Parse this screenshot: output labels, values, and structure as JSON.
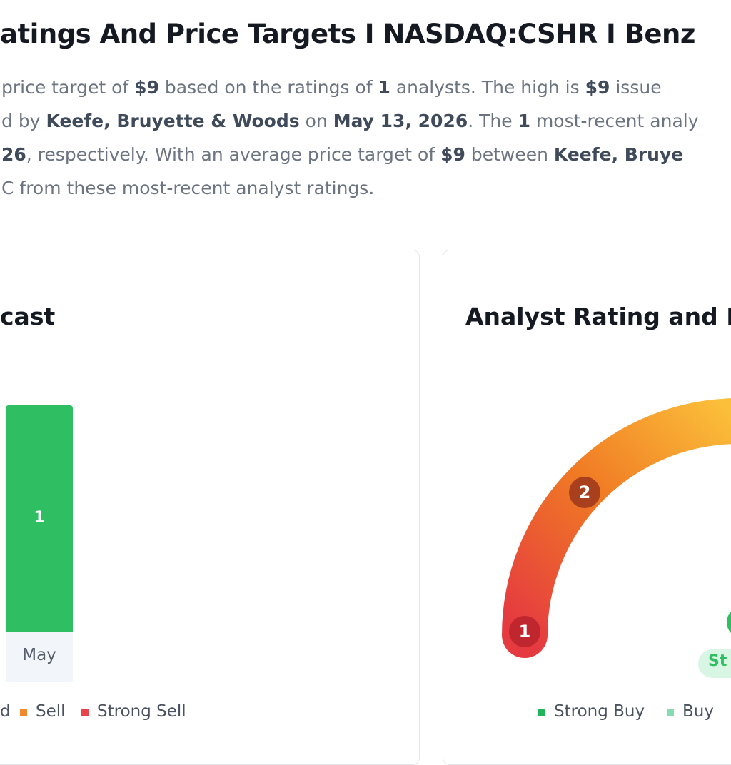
{
  "header": {
    "title": "atings And Price Targets I NASDAQ:CSHR I Benz"
  },
  "summary": {
    "lines": [
      [
        {
          "text": "price target of ",
          "bold": false
        },
        {
          "text": "$9",
          "bold": true
        },
        {
          "text": " based on the ratings of ",
          "bold": false
        },
        {
          "text": "1",
          "bold": true
        },
        {
          "text": " analysts. The high is ",
          "bold": false
        },
        {
          "text": "$9",
          "bold": true
        },
        {
          "text": " issue",
          "bold": false
        }
      ],
      [
        {
          "text": "d by ",
          "bold": false
        },
        {
          "text": "Keefe, Bruyette & Woods",
          "bold": true
        },
        {
          "text": " on ",
          "bold": false
        },
        {
          "text": "May 13, 2026",
          "bold": true
        },
        {
          "text": ". The ",
          "bold": false
        },
        {
          "text": "1",
          "bold": true
        },
        {
          "text": " most-recent analy",
          "bold": false
        }
      ],
      [
        {
          "text": "26",
          "bold": true
        },
        {
          "text": ", respectively. With an average price target of ",
          "bold": false
        },
        {
          "text": "$9",
          "bold": true
        },
        {
          "text": " between ",
          "bold": false
        },
        {
          "text": "Keefe, Bruye",
          "bold": true
        }
      ],
      [
        {
          "text": "C from these most-recent analyst ratings.",
          "bold": false
        }
      ]
    ]
  },
  "forecast_card": {
    "title": "cast",
    "bar": {
      "category": "May",
      "value": 1,
      "color": "#2fbf62"
    },
    "legend": [
      {
        "name": "d"
      },
      {
        "name": "Sell",
        "color": "#f0892c"
      },
      {
        "name": "Strong Sell",
        "color": "#e8434a"
      }
    ]
  },
  "rating_card": {
    "title": "Analyst Rating and Fo",
    "markers": [
      {
        "label": "1",
        "color": "#c0262d"
      },
      {
        "label": "2",
        "color": "#a8401e"
      }
    ],
    "badge": "St",
    "legend": [
      {
        "name": "Strong Buy",
        "color": "#22b45a"
      },
      {
        "name": "Buy",
        "color": "#86dcb0"
      }
    ]
  }
}
